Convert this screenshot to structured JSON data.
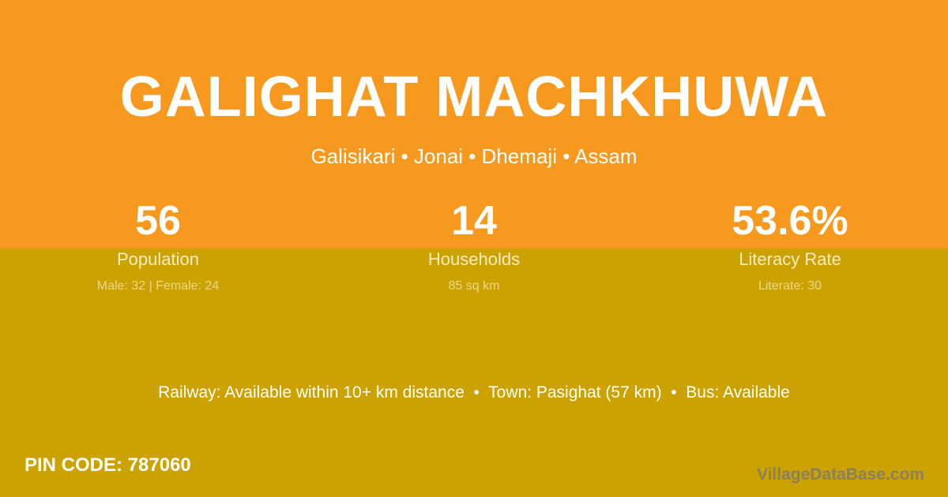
{
  "colors": {
    "top_bg": "#f7981f",
    "bottom_bg": "#cba200"
  },
  "title": "GALIGHAT MACHKHUWA",
  "subtitle": "Galisikari • Jonai • Dhemaji • Assam",
  "stats": [
    {
      "value": "56",
      "label": "Population",
      "sub": "Male: 32 | Female: 24"
    },
    {
      "value": "14",
      "label": "Households",
      "sub": "85 sq km"
    },
    {
      "value": "53.6%",
      "label": "Literacy Rate",
      "sub": "Literate: 30"
    }
  ],
  "info": "Railway: Available within 10+ km distance  •  Town: Pasighat (57 km)  •  Bus: Available",
  "pin": "PIN CODE: 787060",
  "brand": "VillageDataBase.com"
}
